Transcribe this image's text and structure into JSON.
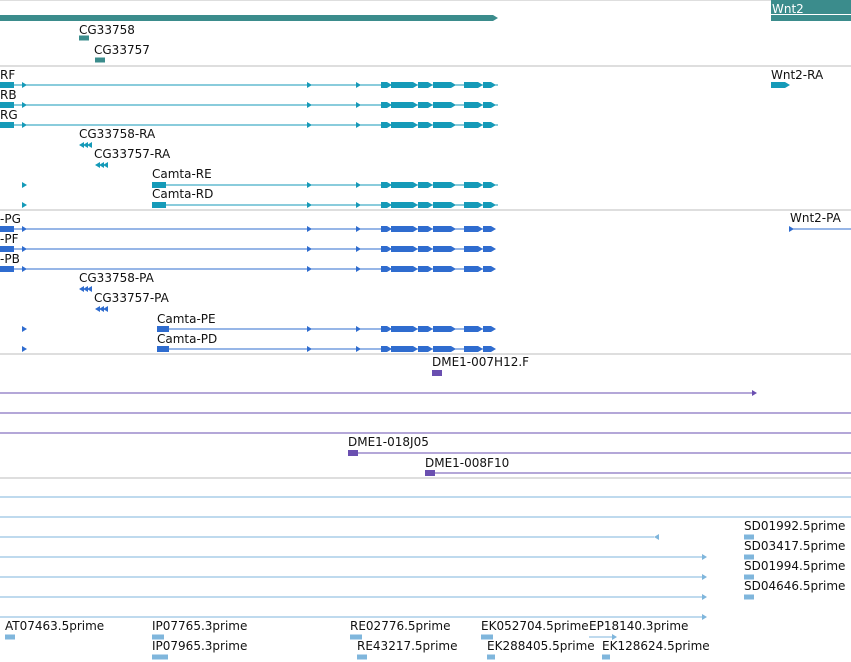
{
  "colors": {
    "gene": "#3b8c8c",
    "transcript": "#159ab8",
    "protein": "#2f6ccf",
    "clone": "#6a4fb0",
    "est": "#7fb6dc",
    "divider": "#bdbdbd",
    "label": "#111111"
  },
  "tracks": [
    {
      "name": "gene-track",
      "color": "gene",
      "features": [
        {
          "name": "gene-feature",
          "label": "Wnt2",
          "bar": true
        },
        {
          "name": "gene-feature",
          "label": "CG33758"
        },
        {
          "name": "gene-feature",
          "label": "CG33757"
        }
      ]
    },
    {
      "name": "transcript-track",
      "color": "transcript",
      "features": [
        {
          "name": "transcript-feature",
          "label": "RF"
        },
        {
          "name": "transcript-feature",
          "label": "Wnt2-RA"
        },
        {
          "name": "transcript-feature",
          "label": "RB"
        },
        {
          "name": "transcript-feature",
          "label": "RG"
        },
        {
          "name": "transcript-feature",
          "label": "CG33758-RA"
        },
        {
          "name": "transcript-feature",
          "label": "CG33757-RA"
        },
        {
          "name": "transcript-feature",
          "label": "Camta-RE"
        },
        {
          "name": "transcript-feature",
          "label": "Camta-RD"
        }
      ]
    },
    {
      "name": "protein-track",
      "color": "protein",
      "features": [
        {
          "name": "protein-feature",
          "label": "-PG"
        },
        {
          "name": "protein-feature",
          "label": "Wnt2-PA"
        },
        {
          "name": "protein-feature",
          "label": "-PF"
        },
        {
          "name": "protein-feature",
          "label": "-PB"
        },
        {
          "name": "protein-feature",
          "label": "CG33758-PA"
        },
        {
          "name": "protein-feature",
          "label": "CG33757-PA"
        },
        {
          "name": "protein-feature",
          "label": "Camta-PE"
        },
        {
          "name": "protein-feature",
          "label": "Camta-PD"
        }
      ]
    },
    {
      "name": "clone-track",
      "color": "clone",
      "features": [
        {
          "name": "clone-feature",
          "label": "DME1-007H12.F"
        },
        {
          "name": "clone-feature",
          "label": "DME1-018J05"
        },
        {
          "name": "clone-feature",
          "label": "DME1-008F10"
        }
      ]
    },
    {
      "name": "est-track",
      "color": "est",
      "features": [
        {
          "name": "est-feature",
          "label": "SD01992.5prime"
        },
        {
          "name": "est-feature",
          "label": "SD03417.5prime"
        },
        {
          "name": "est-feature",
          "label": "SD01994.5prime"
        },
        {
          "name": "est-feature",
          "label": "SD04646.5prime"
        },
        {
          "name": "est-feature",
          "label": "AT07463.5prime"
        },
        {
          "name": "est-feature",
          "label": "IP07765.3prime"
        },
        {
          "name": "est-feature",
          "label": "IP07965.3prime"
        },
        {
          "name": "est-feature",
          "label": "RE02776.5prime"
        },
        {
          "name": "est-feature",
          "label": "RE43217.5prime"
        },
        {
          "name": "est-feature",
          "label": "EK052704.5prime"
        },
        {
          "name": "est-feature",
          "label": "EP18140.3prime"
        },
        {
          "name": "est-feature",
          "label": "EK288405.5prime"
        },
        {
          "name": "est-feature",
          "label": "EK128624.5prime"
        }
      ]
    }
  ]
}
